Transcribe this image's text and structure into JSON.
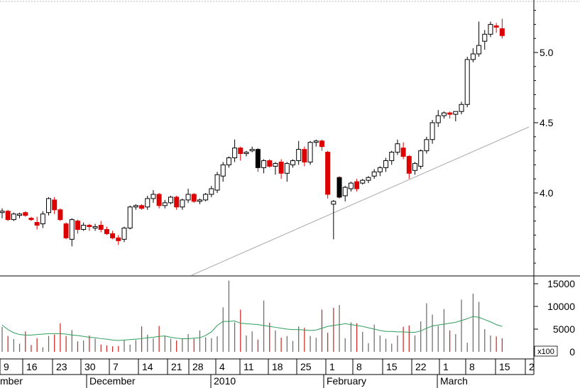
{
  "chart_data": [
    {
      "type": "candlestick",
      "title": "",
      "y_axis": {
        "ticks": [
          "4.0",
          "4.5",
          "5.0"
        ],
        "tick_values": [
          4.0,
          4.5,
          5.0
        ],
        "range": [
          3.4,
          5.4
        ],
        "position": "right"
      },
      "x_axis": {
        "day_ticks": [
          "9",
          "16",
          "23",
          "30",
          "7",
          "14",
          "21",
          "28",
          "4",
          "11",
          "18",
          "25",
          "1",
          "8",
          "15",
          "22",
          "1",
          "8",
          "15",
          "2"
        ],
        "months": [
          "mber",
          "December",
          "2010",
          "February",
          "March"
        ]
      },
      "colors": {
        "up": "#ffffff",
        "down": "#dd0000",
        "down_alt": "#000000",
        "wick": "#000000",
        "trendline": "#aaaaaa",
        "volume_ma": "#2e9e5b",
        "volume_bar": "#cc2222",
        "volume_bar_alt": "#666666"
      },
      "trendline": {
        "from": [
          0.0,
          3.46
        ],
        "to": [
          1.0,
          4.46
        ]
      },
      "candles": [
        [
          3.86,
          3.89,
          3.82,
          3.87
        ],
        [
          3.87,
          3.88,
          3.8,
          3.81
        ],
        [
          3.81,
          3.86,
          3.8,
          3.85
        ],
        [
          3.84,
          3.86,
          3.82,
          3.85
        ],
        [
          3.86,
          3.87,
          3.83,
          3.84
        ],
        [
          3.82,
          3.83,
          3.8,
          3.81
        ],
        [
          3.79,
          3.83,
          3.74,
          3.77
        ],
        [
          3.78,
          3.87,
          3.75,
          3.85
        ],
        [
          3.86,
          3.97,
          3.84,
          3.96
        ],
        [
          3.95,
          3.97,
          3.85,
          3.88
        ],
        [
          3.88,
          3.89,
          3.8,
          3.81
        ],
        [
          3.78,
          3.79,
          3.67,
          3.68
        ],
        [
          3.67,
          3.82,
          3.62,
          3.81
        ],
        [
          3.8,
          3.81,
          3.71,
          3.74
        ],
        [
          3.74,
          3.79,
          3.73,
          3.77
        ],
        [
          3.77,
          3.78,
          3.73,
          3.76
        ],
        [
          3.75,
          3.78,
          3.73,
          3.76
        ],
        [
          3.77,
          3.8,
          3.72,
          3.74
        ],
        [
          3.74,
          3.76,
          3.7,
          3.71
        ],
        [
          3.71,
          3.73,
          3.67,
          3.68
        ],
        [
          3.68,
          3.7,
          3.63,
          3.66
        ],
        [
          3.67,
          3.76,
          3.65,
          3.75
        ],
        [
          3.75,
          3.91,
          3.74,
          3.9
        ],
        [
          3.9,
          3.92,
          3.88,
          3.91
        ],
        [
          3.91,
          3.92,
          3.88,
          3.89
        ],
        [
          3.9,
          3.98,
          3.88,
          3.96
        ],
        [
          3.96,
          4.02,
          3.93,
          3.99
        ],
        [
          3.99,
          4.0,
          3.89,
          3.91
        ],
        [
          3.91,
          3.95,
          3.89,
          3.93
        ],
        [
          3.93,
          3.98,
          3.92,
          3.97
        ],
        [
          3.97,
          3.98,
          3.88,
          3.9
        ],
        [
          3.9,
          3.96,
          3.88,
          3.95
        ],
        [
          3.95,
          4.03,
          3.93,
          3.99
        ],
        [
          3.99,
          4.0,
          3.93,
          3.94
        ],
        [
          3.94,
          3.96,
          3.92,
          3.95
        ],
        [
          3.95,
          4.0,
          3.94,
          3.99
        ],
        [
          3.99,
          4.05,
          3.97,
          4.03
        ],
        [
          4.02,
          4.15,
          4.0,
          4.13
        ],
        [
          4.12,
          4.22,
          4.08,
          4.2
        ],
        [
          4.2,
          4.26,
          4.18,
          4.25
        ],
        [
          4.25,
          4.38,
          4.22,
          4.32
        ],
        [
          4.32,
          4.33,
          4.23,
          4.28
        ],
        [
          4.28,
          4.3,
          4.26,
          4.29
        ],
        [
          4.3,
          4.33,
          4.29,
          4.31
        ],
        [
          4.31,
          4.32,
          4.15,
          4.18
        ],
        [
          4.18,
          4.24,
          4.14,
          4.23
        ],
        [
          4.23,
          4.24,
          4.18,
          4.19
        ],
        [
          4.19,
          4.22,
          4.13,
          4.21
        ],
        [
          4.22,
          4.24,
          4.1,
          4.14
        ],
        [
          4.14,
          4.22,
          4.08,
          4.21
        ],
        [
          4.2,
          4.24,
          4.18,
          4.23
        ],
        [
          4.23,
          4.37,
          4.2,
          4.31
        ],
        [
          4.31,
          4.33,
          4.19,
          4.22
        ],
        [
          4.22,
          4.37,
          4.2,
          4.36
        ],
        [
          4.36,
          4.38,
          4.33,
          4.37
        ],
        [
          4.37,
          4.38,
          4.3,
          4.33
        ],
        [
          4.29,
          4.3,
          3.96,
          3.99
        ],
        [
          3.92,
          3.95,
          3.67,
          3.94
        ],
        [
          4.11,
          4.12,
          3.96,
          3.97
        ],
        [
          3.98,
          4.05,
          3.94,
          4.04
        ],
        [
          4.03,
          4.08,
          4.01,
          4.07
        ],
        [
          4.08,
          4.1,
          4.01,
          4.03
        ],
        [
          4.07,
          4.1,
          4.06,
          4.09
        ],
        [
          4.09,
          4.12,
          4.07,
          4.11
        ],
        [
          4.12,
          4.17,
          4.1,
          4.15
        ],
        [
          4.15,
          4.19,
          4.12,
          4.18
        ],
        [
          4.18,
          4.25,
          4.15,
          4.23
        ],
        [
          4.23,
          4.3,
          4.2,
          4.29
        ],
        [
          4.29,
          4.38,
          4.27,
          4.35
        ],
        [
          4.32,
          4.36,
          4.24,
          4.26
        ],
        [
          4.26,
          4.27,
          4.1,
          4.14
        ],
        [
          4.16,
          4.22,
          4.13,
          4.21
        ],
        [
          4.19,
          4.31,
          4.17,
          4.3
        ],
        [
          4.3,
          4.4,
          4.28,
          4.38
        ],
        [
          4.38,
          4.52,
          4.35,
          4.5
        ],
        [
          4.5,
          4.59,
          4.47,
          4.55
        ],
        [
          4.55,
          4.58,
          4.53,
          4.57
        ],
        [
          4.57,
          4.58,
          4.53,
          4.56
        ],
        [
          4.56,
          4.58,
          4.51,
          4.58
        ],
        [
          4.58,
          4.65,
          4.56,
          4.63
        ],
        [
          4.63,
          4.97,
          4.61,
          4.95
        ],
        [
          4.95,
          5.03,
          4.93,
          4.99
        ],
        [
          4.99,
          5.22,
          4.97,
          5.05
        ],
        [
          5.08,
          5.16,
          5.02,
          5.13
        ],
        [
          5.13,
          5.22,
          5.11,
          5.2
        ],
        [
          5.19,
          5.21,
          5.14,
          5.18
        ],
        [
          5.17,
          5.24,
          5.1,
          5.12
        ]
      ],
      "volume": {
        "ticks": [
          "15000",
          "10000",
          "5000",
          "0"
        ],
        "tick_values": [
          15000,
          10000,
          5000,
          0
        ],
        "range": [
          0,
          16000
        ],
        "unit": "x100",
        "bars": [
          5500,
          3500,
          2800,
          1800,
          4500,
          1500,
          3000,
          1000,
          3500,
          3800,
          6300,
          3500,
          4800,
          2300,
          2500,
          3600,
          2900,
          1600,
          1400,
          1200,
          1300,
          2500,
          1600,
          2600,
          5600,
          3800,
          3000,
          5700,
          3500,
          2900,
          2500,
          2900,
          3900,
          2900,
          4700,
          3200,
          3000,
          3400,
          9800,
          15700,
          6500,
          9300,
          3600,
          4500,
          2700,
          11300,
          6400,
          4700,
          3100,
          3500,
          2400,
          5600,
          5300,
          3500,
          3100,
          9300,
          4200,
          9700,
          10300,
          3000,
          6500,
          6300,
          4400,
          1900,
          6000,
          3600,
          2900,
          1800,
          3600,
          5500,
          5800,
          3600,
          6700,
          10700,
          8200,
          5700,
          9400,
          4700,
          3900,
          11500,
          2000,
          12800,
          11000,
          5000,
          3600,
          3400,
          3000
        ],
        "ma": [
          5900,
          4900,
          4200,
          3800,
          3700,
          3700,
          3800,
          3900,
          4000,
          4000,
          4000,
          3900,
          3700,
          3600,
          3400,
          3200,
          3100,
          2900,
          2800,
          2600,
          2500,
          2600,
          2700,
          2800,
          2900,
          3100,
          3200,
          3400,
          3500,
          3200,
          3000,
          2900,
          2900,
          3000,
          3100,
          3600,
          4400,
          5800,
          6700,
          6700,
          6800,
          6300,
          6200,
          6100,
          6000,
          5800,
          5600,
          5400,
          5200,
          5000,
          4900,
          4900,
          4800,
          4700,
          4800,
          5200,
          5600,
          5800,
          6000,
          6200,
          6000,
          5800,
          5600,
          5300,
          5000,
          4700,
          4500,
          4500,
          4400,
          4400,
          4300,
          4300,
          4600,
          5200,
          5700,
          5900,
          6100,
          6300,
          6500,
          6900,
          7300,
          7800,
          7600,
          7100,
          6600,
          6000,
          5600
        ]
      }
    }
  ]
}
